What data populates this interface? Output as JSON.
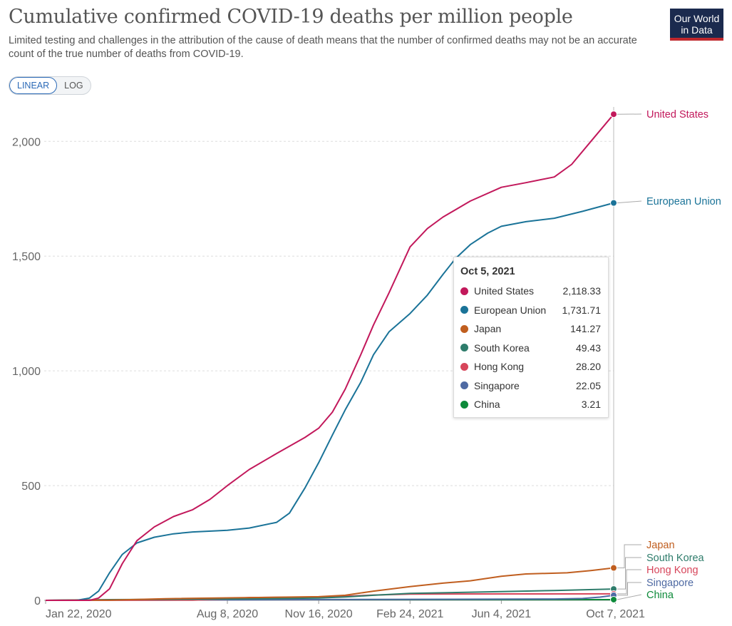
{
  "header": {
    "title": "Cumulative confirmed COVID-19 deaths per million people",
    "subtitle": "Limited testing and challenges in the attribution of the cause of death means that the number of confirmed deaths may not be an accurate count of the true number of deaths from COVID-19.",
    "logo_line1": "Our World",
    "logo_line2": "in Data"
  },
  "controls": {
    "linear_label": "LINEAR",
    "log_label": "LOG",
    "selected": "LINEAR"
  },
  "tooltip": {
    "date": "Oct 5, 2021",
    "rows": [
      {
        "name": "United States",
        "value": "2,118.33",
        "color": "#c2185b"
      },
      {
        "name": "European Union",
        "value": "1,731.71",
        "color": "#1a7398"
      },
      {
        "name": "Japan",
        "value": "141.27",
        "color": "#c05e1f"
      },
      {
        "name": "South Korea",
        "value": "49.43",
        "color": "#2e7c6b"
      },
      {
        "name": "Hong Kong",
        "value": "28.20",
        "color": "#d7455a"
      },
      {
        "name": "Singapore",
        "value": "22.05",
        "color": "#4f6aa3"
      },
      {
        "name": "China",
        "value": "3.21",
        "color": "#0d8a3a"
      }
    ]
  },
  "chart_data": {
    "type": "line",
    "title": "Cumulative confirmed COVID-19 deaths per million people",
    "scale": "linear",
    "x_range": [
      "2020-01-22",
      "2021-10-05"
    ],
    "ylim": [
      0,
      2150
    ],
    "y_ticks": [
      0,
      500,
      1000,
      1500,
      2000
    ],
    "y_tick_labels": [
      "0",
      "500",
      "1,000",
      "1,500",
      "2,000"
    ],
    "x_ticks": [
      "2020-01-22",
      "2020-08-08",
      "2020-11-16",
      "2021-02-24",
      "2021-06-04",
      "2021-10-07"
    ],
    "x_tick_labels": [
      "Jan 22, 2020",
      "Aug 8, 2020",
      "Nov 16, 2020",
      "Feb 24, 2021",
      "Jun 4, 2021",
      "Oct 7, 2021"
    ],
    "grid": "horizontal dashed",
    "legend": "right, labels at line ends",
    "series": [
      {
        "name": "United States",
        "color": "#c2185b",
        "x": [
          "2020-01-22",
          "2020-03-10",
          "2020-03-20",
          "2020-04-01",
          "2020-04-15",
          "2020-05-01",
          "2020-05-20",
          "2020-06-10",
          "2020-07-01",
          "2020-07-20",
          "2020-08-08",
          "2020-09-01",
          "2020-10-01",
          "2020-11-01",
          "2020-11-16",
          "2020-12-01",
          "2020-12-15",
          "2021-01-01",
          "2021-01-15",
          "2021-02-01",
          "2021-02-24",
          "2021-03-15",
          "2021-04-01",
          "2021-05-01",
          "2021-06-04",
          "2021-07-01",
          "2021-08-01",
          "2021-08-20",
          "2021-09-10",
          "2021-10-05"
        ],
        "y": [
          0,
          0,
          10,
          50,
          160,
          260,
          320,
          365,
          395,
          440,
          500,
          570,
          640,
          710,
          750,
          820,
          920,
          1070,
          1200,
          1340,
          1540,
          1620,
          1670,
          1740,
          1800,
          1820,
          1845,
          1900,
          2000,
          2118.33
        ]
      },
      {
        "name": "European Union",
        "color": "#1a7398",
        "x": [
          "2020-01-22",
          "2020-02-25",
          "2020-03-10",
          "2020-03-20",
          "2020-04-01",
          "2020-04-15",
          "2020-05-01",
          "2020-05-20",
          "2020-06-10",
          "2020-07-01",
          "2020-08-08",
          "2020-09-01",
          "2020-10-01",
          "2020-10-15",
          "2020-11-01",
          "2020-11-16",
          "2020-12-01",
          "2020-12-15",
          "2021-01-01",
          "2021-01-15",
          "2021-02-01",
          "2021-02-24",
          "2021-03-15",
          "2021-04-01",
          "2021-04-15",
          "2021-05-01",
          "2021-05-20",
          "2021-06-04",
          "2021-07-01",
          "2021-08-01",
          "2021-09-01",
          "2021-10-05"
        ],
        "y": [
          0,
          0,
          10,
          40,
          120,
          200,
          250,
          275,
          290,
          298,
          305,
          315,
          340,
          380,
          490,
          600,
          720,
          830,
          950,
          1070,
          1170,
          1250,
          1330,
          1420,
          1490,
          1550,
          1600,
          1630,
          1650,
          1665,
          1695,
          1731.71
        ]
      },
      {
        "name": "Japan",
        "color": "#c05e1f",
        "x": [
          "2020-01-22",
          "2020-04-01",
          "2020-06-01",
          "2020-11-16",
          "2020-12-15",
          "2021-01-15",
          "2021-02-24",
          "2021-04-01",
          "2021-05-01",
          "2021-06-04",
          "2021-07-01",
          "2021-08-15",
          "2021-09-10",
          "2021-10-05"
        ],
        "y": [
          0,
          1,
          7,
          16,
          22,
          40,
          60,
          75,
          85,
          105,
          115,
          120,
          130,
          141.27
        ]
      },
      {
        "name": "South Korea",
        "color": "#2e7c6b",
        "x": [
          "2020-01-22",
          "2020-03-01",
          "2020-04-01",
          "2020-08-08",
          "2020-11-16",
          "2020-12-15",
          "2021-01-15",
          "2021-02-24",
          "2021-06-04",
          "2021-08-01",
          "2021-10-05"
        ],
        "y": [
          0,
          1,
          3,
          6,
          10,
          15,
          22,
          30,
          38,
          43,
          49.43
        ]
      },
      {
        "name": "Hong Kong",
        "color": "#d7455a",
        "x": [
          "2020-01-22",
          "2020-07-01",
          "2020-08-08",
          "2020-09-01",
          "2020-11-16",
          "2020-12-15",
          "2021-01-15",
          "2021-02-24",
          "2021-06-04",
          "2021-10-05"
        ],
        "y": [
          0,
          1,
          6,
          12,
          14,
          18,
          23,
          27,
          28,
          28.2
        ]
      },
      {
        "name": "Singapore",
        "color": "#4f6aa3",
        "x": [
          "2020-01-22",
          "2020-04-01",
          "2021-08-01",
          "2021-09-01",
          "2021-09-20",
          "2021-10-05"
        ],
        "y": [
          0,
          1,
          6,
          8,
          14,
          22.05
        ]
      },
      {
        "name": "China",
        "color": "#0d8a3a",
        "x": [
          "2020-01-22",
          "2020-03-01",
          "2020-04-20",
          "2021-10-05"
        ],
        "y": [
          0,
          2,
          3.2,
          3.21
        ]
      }
    ]
  }
}
